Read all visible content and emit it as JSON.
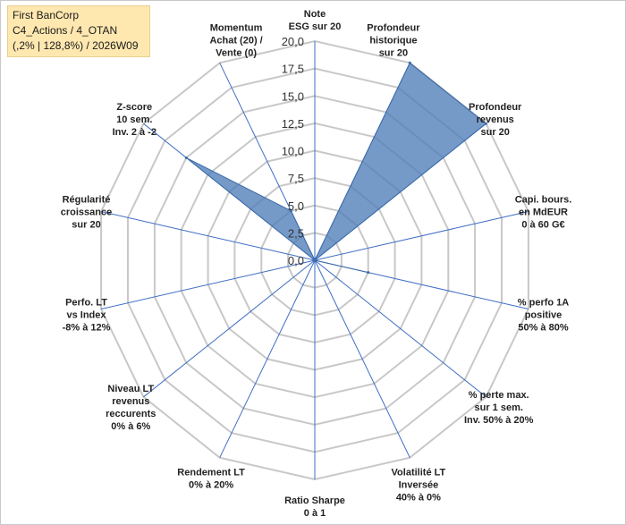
{
  "header": {
    "company": "First BanCorp",
    "portfolio": "C4_Actions / 4_OTAN",
    "period": "(,2% | 128,8%) / 2026W09"
  },
  "chart_data": {
    "type": "radar",
    "title": "",
    "range": [
      0,
      20
    ],
    "ticks": [
      "0,0",
      "2,5",
      "5,0",
      "7,5",
      "10,0",
      "12,5",
      "15,0",
      "17,5",
      "20,0"
    ],
    "tick_values": [
      0,
      2.5,
      5,
      7.5,
      10,
      12.5,
      15,
      17.5,
      20
    ],
    "categories": [
      [
        "Note",
        "ESG sur 20"
      ],
      [
        "Profondeur",
        "historique",
        "sur 20"
      ],
      [
        "Profondeur",
        "revenus",
        "sur 20"
      ],
      [
        "Capi. bours.",
        "en MdEUR",
        "0 à 60 G€"
      ],
      [
        "% perfo 1A",
        "positive",
        "50% à 80%"
      ],
      [
        "% perte max.",
        "sur 1 sem.",
        "Inv. 50% à 20%"
      ],
      [
        "Volatilité LT",
        "Inversée",
        "40% à 0%"
      ],
      [
        "Ratio Sharpe",
        "0 à 1"
      ],
      [
        "Rendement LT",
        "0% à 20%"
      ],
      [
        "Niveau LT",
        "revenus",
        "reccurents",
        "0% à 6%"
      ],
      [
        "Perfo. LT",
        "vs Index",
        "-8% à 12%"
      ],
      [
        "Régularité",
        "croissance",
        "sur 20"
      ],
      [
        "Z-score",
        "10 sem.",
        "Inv. 2 à -2"
      ],
      [
        "Momentum",
        "Achat (20) /",
        "Vente (0)"
      ]
    ],
    "series": [
      {
        "name": "First BanCorp",
        "values": [
          0,
          20,
          20,
          0,
          5,
          0,
          0,
          0,
          0,
          0,
          0,
          0,
          15,
          5
        ]
      }
    ],
    "colors": {
      "fill": "#4f7eb8",
      "stroke": "#3b6aa8",
      "grid": "#c8c8c8",
      "spoke": "#3f6fc4"
    }
  }
}
